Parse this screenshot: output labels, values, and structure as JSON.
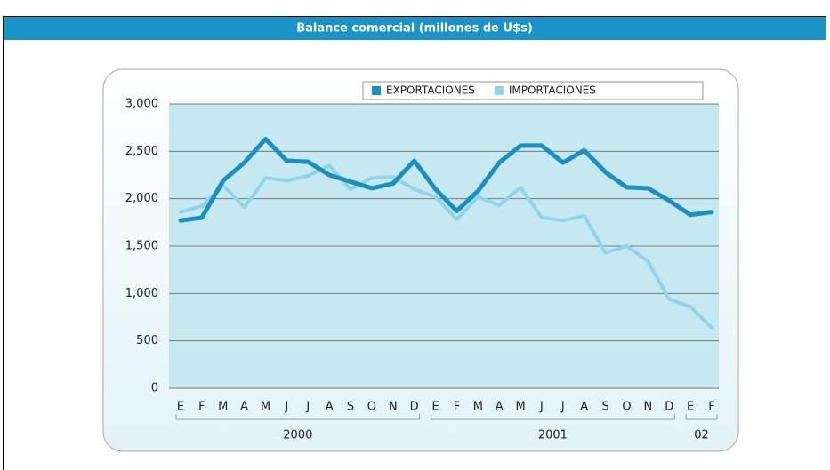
{
  "chart_data": {
    "type": "line",
    "title": "Balance comercial (millones de U$s)",
    "categories": [
      "E",
      "F",
      "M",
      "A",
      "M",
      "J",
      "J",
      "A",
      "S",
      "O",
      "N",
      "D",
      "E",
      "F",
      "M",
      "A",
      "M",
      "J",
      "J",
      "A",
      "S",
      "O",
      "N",
      "D",
      "E",
      "F"
    ],
    "groups": [
      "2000",
      "2001",
      "02"
    ],
    "series": [
      {
        "name": "EXPORTACIONES",
        "color": "#1a8fc0",
        "values": [
          1770,
          1800,
          2190,
          2380,
          2630,
          2400,
          2390,
          2250,
          2180,
          2110,
          2160,
          2400,
          2100,
          1870,
          2080,
          2380,
          2560,
          2560,
          2380,
          2510,
          2280,
          2120,
          2110,
          1980,
          1830,
          1860
        ]
      },
      {
        "name": "IMPORTACIONES",
        "color": "#8fd4e8",
        "values": [
          1860,
          1920,
          2140,
          1910,
          2220,
          2190,
          2240,
          2350,
          2100,
          2220,
          2230,
          2100,
          2020,
          1780,
          2020,
          1930,
          2120,
          1800,
          1770,
          1820,
          1430,
          1500,
          1340,
          940,
          860,
          640
        ]
      }
    ],
    "ylim": [
      0,
      3000
    ],
    "yticks": [
      0,
      500,
      {
        "value": 1000,
        "label": "1,000"
      },
      {
        "value": 1500,
        "label": "1,500"
      },
      {
        "value": 2000,
        "label": "2,000"
      },
      {
        "value": 2500,
        "label": "2,500"
      },
      {
        "value": 3000,
        "label": "3,000"
      }
    ],
    "grid": true,
    "legend": "top-right"
  }
}
